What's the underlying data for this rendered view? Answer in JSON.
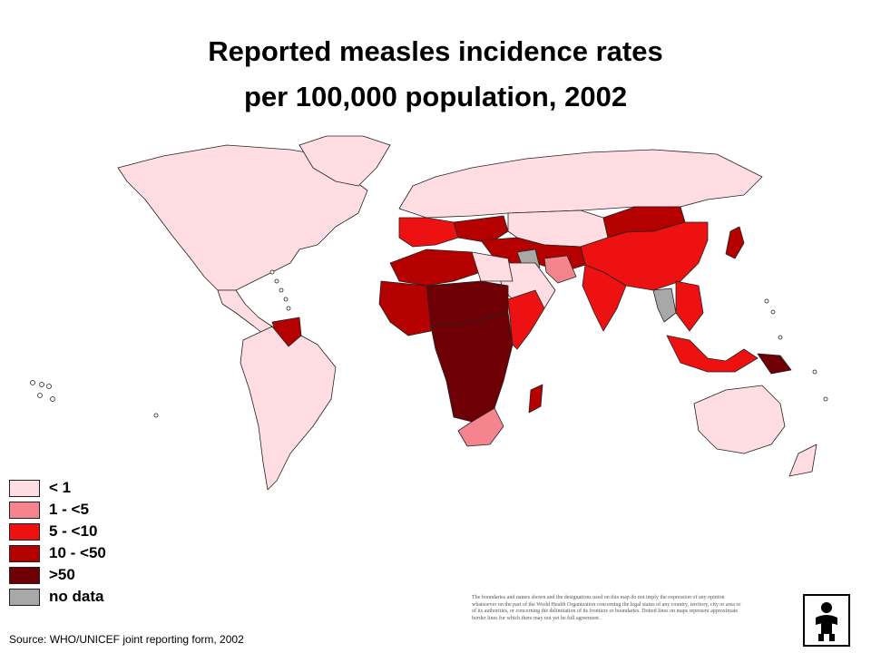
{
  "title": {
    "line1": "Reported measles incidence rates",
    "line2": "per 100,000 population, 2002"
  },
  "legend": [
    {
      "label": "< 1",
      "color": "#ffdde2"
    },
    {
      "label": "1 - <5",
      "color": "#f5848e"
    },
    {
      "label": "5 -  <10",
      "color": "#ee1111"
    },
    {
      "label": "10  - <50",
      "color": "#b50000"
    },
    {
      "label": ">50",
      "color": "#6e0005"
    },
    {
      "label": "no data",
      "color": "#a8a8a8"
    }
  ],
  "map": {
    "ocean_color": "#ffffff",
    "border_color": "#222222",
    "regions": [
      {
        "name": "North America",
        "category": "< 1"
      },
      {
        "name": "Greenland",
        "category": "< 1"
      },
      {
        "name": "Central America and Caribbean",
        "category": "< 1"
      },
      {
        "name": "Venezuela",
        "category": "10  - <50"
      },
      {
        "name": "South America",
        "category": "< 1"
      },
      {
        "name": "Russia and Northern Europe",
        "category": "< 1"
      },
      {
        "name": "Western Europe",
        "category": "5 -  <10"
      },
      {
        "name": "Eastern Europe",
        "category": "10  - <50"
      },
      {
        "name": "Central Asia",
        "category": "< 1"
      },
      {
        "name": "Mongolia",
        "category": "10  - <50"
      },
      {
        "name": "China",
        "category": "5 -  <10"
      },
      {
        "name": "Japan",
        "category": "10  - <50"
      },
      {
        "name": "Middle East",
        "category": "10  - <50"
      },
      {
        "name": "Arabian Peninsula",
        "category": "< 1"
      },
      {
        "name": "Iran",
        "category": "1 - <5"
      },
      {
        "name": "India",
        "category": "5 -  <10"
      },
      {
        "name": "Southeast Asia",
        "category": "5 -  <10"
      },
      {
        "name": "Indonesia",
        "category": "5 -  <10"
      },
      {
        "name": "Papua",
        "category": ">50"
      },
      {
        "name": "Australia",
        "category": "< 1"
      },
      {
        "name": "New Zealand",
        "category": "< 1"
      },
      {
        "name": "North Africa",
        "category": "10  - <50"
      },
      {
        "name": "Egypt",
        "category": "< 1"
      },
      {
        "name": "West Africa",
        "category": "10  - <50"
      },
      {
        "name": "Sahel",
        "category": ">50"
      },
      {
        "name": "Central Africa",
        "category": ">50"
      },
      {
        "name": "East Africa",
        "category": "5 -  <10"
      },
      {
        "name": "Southern Africa",
        "category": "1 - <5"
      },
      {
        "name": "Madagascar",
        "category": "10  - <50"
      },
      {
        "name": "Afghanistan",
        "category": "no data"
      },
      {
        "name": "Myanmar",
        "category": "no data"
      }
    ]
  },
  "disclaimer": "The boundaries and names shown and the designations used on this map do not imply the expression of any opinion whatsoever on the part of the World Health Organization concerning the legal status of any country, territory, city or area or of its authorities, or concerning the delimitation of its frontiers or boundaries. Dotted lines on maps represent approximate border lines for which there may not yet be full agreement.",
  "source": "Source: WHO/UNICEF joint reporting form, 2002",
  "logo_icon": "who-unicef-family-logo-icon"
}
